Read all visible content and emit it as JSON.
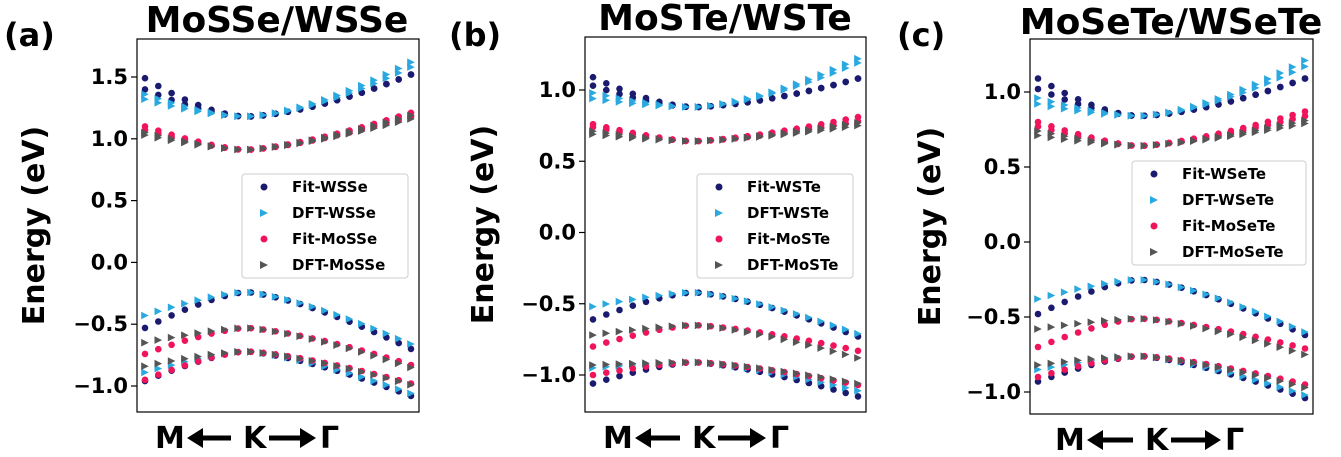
{
  "figure": {
    "ylabel": "Energy (eV)",
    "xpath": {
      "left": "M",
      "middle": "K",
      "right": "Γ"
    },
    "colors": {
      "fit_w": "#1a1a6e",
      "dft_w": "#2aa8e0",
      "fit_mo": "#f0145a",
      "dft_mo": "#555555"
    }
  },
  "chart_data": [
    {
      "type": "scatter",
      "panel_label": "(a)",
      "title": "MoSSe/WSSe",
      "ylabel": "Energy (eV)",
      "ylim": [
        -1.23,
        1.79
      ],
      "yticks": [
        1.5,
        1.0,
        0.5,
        0.0,
        -0.5,
        -1.0
      ],
      "ytick_labels": [
        "1.5",
        "1.0",
        "0.5",
        "0.0",
        "−0.5",
        "−1.0"
      ],
      "x_tick_labels": [
        "M",
        "K",
        "Γ"
      ],
      "legend_position": "center-right",
      "series": [
        {
          "name": "Fit-WSSe",
          "marker": "circle",
          "color": "#1a1a6e",
          "bands": [
            {
              "left": 1.49,
              "mid": 1.18,
              "right": 1.52,
              "expo": 1.6
            },
            {
              "left": 1.4,
              "mid": 1.18,
              "right": 1.52,
              "expo": 1.6
            },
            {
              "left": -0.53,
              "mid": -0.24,
              "right": -0.7,
              "expo": 1.4
            },
            {
              "left": -0.96,
              "mid": -0.72,
              "right": -1.08,
              "expo": 1.4
            }
          ]
        },
        {
          "name": "DFT-WSSe",
          "marker": "triangle",
          "color": "#2aa8e0",
          "bands": [
            {
              "left": 1.36,
              "mid": 1.18,
              "right": 1.62,
              "expo": 1.6
            },
            {
              "left": 1.32,
              "mid": 1.18,
              "right": 1.58,
              "expo": 1.6
            },
            {
              "left": -0.43,
              "mid": -0.24,
              "right": -0.66,
              "expo": 1.4
            },
            {
              "left": -0.89,
              "mid": -0.72,
              "right": -1.06,
              "expo": 1.4
            }
          ]
        },
        {
          "name": "Fit-MoSSe",
          "marker": "circle",
          "color": "#f0145a",
          "bands": [
            {
              "left": 1.1,
              "mid": 0.91,
              "right": 1.21,
              "expo": 1.4
            },
            {
              "left": 1.07,
              "mid": 0.91,
              "right": 1.18,
              "expo": 1.4
            },
            {
              "left": -0.74,
              "mid": -0.53,
              "right": -0.83,
              "expo": 1.4
            },
            {
              "left": -0.95,
              "mid": -0.72,
              "right": -0.98,
              "expo": 1.4
            }
          ]
        },
        {
          "name": "DFT-MoSSe",
          "marker": "triangle",
          "color": "#555555",
          "bands": [
            {
              "left": 1.05,
              "mid": 0.91,
              "right": 1.19,
              "expo": 1.4
            },
            {
              "left": 1.03,
              "mid": 0.91,
              "right": 1.16,
              "expo": 1.4
            },
            {
              "left": -0.65,
              "mid": -0.53,
              "right": -0.85,
              "expo": 1.4
            },
            {
              "left": -0.84,
              "mid": -0.72,
              "right": -0.99,
              "expo": 1.4
            }
          ]
        }
      ]
    },
    {
      "type": "scatter",
      "panel_label": "(b)",
      "title": "MoSTe/WSTe",
      "ylabel": "Energy (eV)",
      "ylim": [
        -1.25,
        1.34
      ],
      "yticks": [
        1.0,
        0.5,
        0.0,
        -0.5,
        -1.0
      ],
      "ytick_labels": [
        "1.0",
        "0.5",
        "0.0",
        "−0.5",
        "−1.0"
      ],
      "x_tick_labels": [
        "M",
        "K",
        "Γ"
      ],
      "legend_position": "center-right",
      "series": [
        {
          "name": "Fit-WSTe",
          "marker": "circle",
          "color": "#1a1a6e",
          "bands": [
            {
              "left": 1.09,
              "mid": 0.88,
              "right": 1.08,
              "expo": 1.6
            },
            {
              "left": 1.03,
              "mid": 0.88,
              "right": 1.08,
              "expo": 1.6
            },
            {
              "left": -0.61,
              "mid": -0.42,
              "right": -0.73,
              "expo": 1.4
            },
            {
              "left": -1.06,
              "mid": -0.91,
              "right": -1.15,
              "expo": 1.4
            }
          ]
        },
        {
          "name": "DFT-WSTe",
          "marker": "triangle",
          "color": "#2aa8e0",
          "bands": [
            {
              "left": 0.98,
              "mid": 0.88,
              "right": 1.22,
              "expo": 1.6
            },
            {
              "left": 0.94,
              "mid": 0.88,
              "right": 1.19,
              "expo": 1.6
            },
            {
              "left": -0.52,
              "mid": -0.42,
              "right": -0.71,
              "expo": 1.4
            },
            {
              "left": -0.95,
              "mid": -0.91,
              "right": -1.11,
              "expo": 1.4
            }
          ]
        },
        {
          "name": "Fit-MoSTe",
          "marker": "circle",
          "color": "#f0145a",
          "bands": [
            {
              "left": 0.76,
              "mid": 0.64,
              "right": 0.81,
              "expo": 1.4
            },
            {
              "left": 0.74,
              "mid": 0.64,
              "right": 0.78,
              "expo": 1.4
            },
            {
              "left": -0.8,
              "mid": -0.65,
              "right": -0.83,
              "expo": 1.4
            },
            {
              "left": -1.0,
              "mid": -0.91,
              "right": -1.07,
              "expo": 1.4
            }
          ]
        },
        {
          "name": "DFT-MoSTe",
          "marker": "triangle",
          "color": "#555555",
          "bands": [
            {
              "left": 0.71,
              "mid": 0.64,
              "right": 0.77,
              "expo": 1.4
            },
            {
              "left": 0.69,
              "mid": 0.64,
              "right": 0.75,
              "expo": 1.4
            },
            {
              "left": -0.72,
              "mid": -0.65,
              "right": -0.88,
              "expo": 1.4
            },
            {
              "left": -0.93,
              "mid": -0.91,
              "right": -1.06,
              "expo": 1.4
            }
          ]
        }
      ]
    },
    {
      "type": "scatter",
      "panel_label": "(c)",
      "title": "MoSeTe/WSeTe",
      "ylabel": "Energy (eV)",
      "ylim": [
        -1.12,
        1.35
      ],
      "yticks": [
        1.0,
        0.5,
        0.0,
        -0.5,
        -1.0
      ],
      "ytick_labels": [
        "1.0",
        "0.5",
        "0.0",
        "−0.5",
        "−1.0"
      ],
      "x_tick_labels": [
        "M",
        "K",
        "Γ"
      ],
      "legend_position": "center-right",
      "series": [
        {
          "name": "Fit-WSeTe",
          "marker": "circle",
          "color": "#1a1a6e",
          "bands": [
            {
              "left": 1.09,
              "mid": 0.84,
              "right": 1.09,
              "expo": 1.6
            },
            {
              "left": 1.02,
              "mid": 0.84,
              "right": 1.09,
              "expo": 1.6
            },
            {
              "left": -0.48,
              "mid": -0.25,
              "right": -0.62,
              "expo": 1.4
            },
            {
              "left": -0.93,
              "mid": -0.76,
              "right": -1.04,
              "expo": 1.4
            }
          ]
        },
        {
          "name": "DFT-WSeTe",
          "marker": "triangle",
          "color": "#2aa8e0",
          "bands": [
            {
              "left": 0.96,
              "mid": 0.84,
              "right": 1.21,
              "expo": 1.6
            },
            {
              "left": 0.92,
              "mid": 0.84,
              "right": 1.17,
              "expo": 1.6
            },
            {
              "left": -0.38,
              "mid": -0.25,
              "right": -0.6,
              "expo": 1.4
            },
            {
              "left": -0.85,
              "mid": -0.76,
              "right": -1.02,
              "expo": 1.4
            }
          ]
        },
        {
          "name": "Fit-MoSeTe",
          "marker": "circle",
          "color": "#f0145a",
          "bands": [
            {
              "left": 0.8,
              "mid": 0.64,
              "right": 0.87,
              "expo": 1.4
            },
            {
              "left": 0.77,
              "mid": 0.64,
              "right": 0.84,
              "expo": 1.4
            },
            {
              "left": -0.7,
              "mid": -0.51,
              "right": -0.71,
              "expo": 1.4
            },
            {
              "left": -0.9,
              "mid": -0.76,
              "right": -0.95,
              "expo": 1.4
            }
          ]
        },
        {
          "name": "DFT-MoSeTe",
          "marker": "triangle",
          "color": "#555555",
          "bands": [
            {
              "left": 0.74,
              "mid": 0.64,
              "right": 0.81,
              "expo": 1.4
            },
            {
              "left": 0.71,
              "mid": 0.64,
              "right": 0.79,
              "expo": 1.4
            },
            {
              "left": -0.58,
              "mid": -0.51,
              "right": -0.75,
              "expo": 1.4
            },
            {
              "left": -0.82,
              "mid": -0.76,
              "right": -0.97,
              "expo": 1.4
            }
          ]
        }
      ]
    }
  ]
}
